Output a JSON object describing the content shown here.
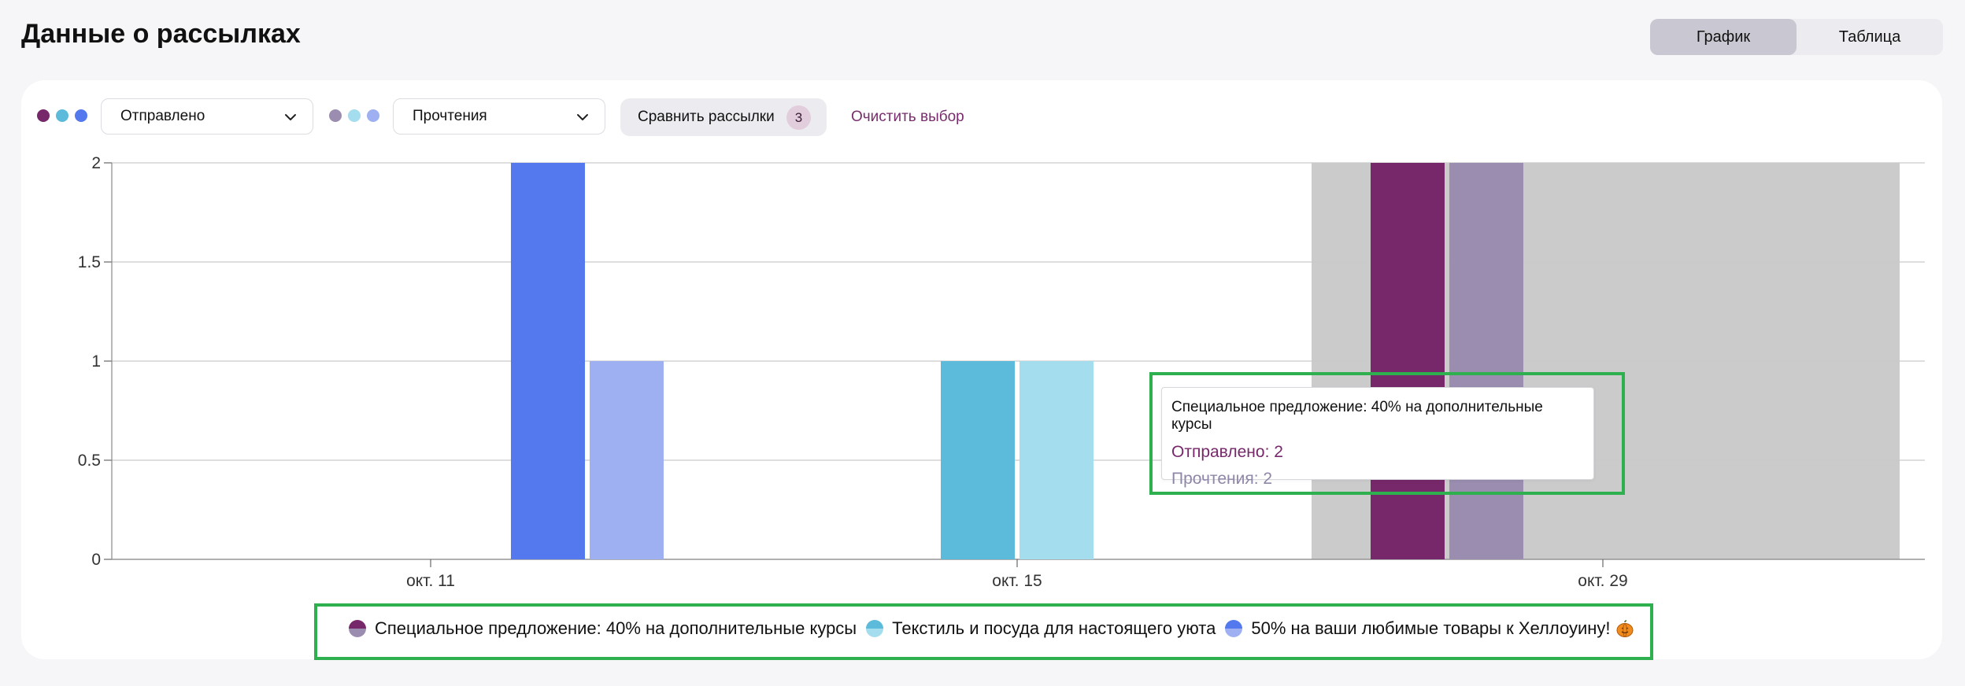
{
  "page": {
    "title": "Данные о рассылках",
    "view_tabs": [
      "График",
      "Таблица"
    ],
    "active_tab": "График"
  },
  "filters": {
    "metric_a": {
      "label": "Отправлено",
      "dot_colors": [
        "#77286a",
        "#5cbadb",
        "#5479ef"
      ]
    },
    "metric_b": {
      "label": "Прочтения",
      "dot_colors": [
        "#9a8db0",
        "#a3ddee",
        "#9eb0f2"
      ]
    },
    "compare_button": "Сравнить рассылки",
    "compare_count": "3",
    "clear_link": "Очистить выбор"
  },
  "tooltip": {
    "title": "Специальное предложение: 40% на дополнительные курсы",
    "sent_line": "Отправлено: 2",
    "read_line": "Прочтения: 2"
  },
  "legend": {
    "items": [
      {
        "label": "Специальное предложение: 40% на дополнительные курсы",
        "top_color": "#77286a",
        "bottom_color": "#9a8db0"
      },
      {
        "label": "Текстиль и посуда для настоящего уюта",
        "top_color": "#5cbadb",
        "bottom_color": "#a3ddee"
      },
      {
        "label": "50% на ваши любимые товары к Хеллоуину!",
        "top_color": "#5479ef",
        "bottom_color": "#9eb0f2",
        "emoji": "pumpkin-icon"
      }
    ]
  },
  "chart_data": {
    "type": "bar",
    "categories": [
      "окт. 11",
      "окт. 15",
      "окт. 29"
    ],
    "y_ticks": [
      "0",
      "0.5",
      "1",
      "1.5",
      "2"
    ],
    "ylim": [
      0,
      2
    ],
    "grid": true,
    "highlighted_category": "окт. 29",
    "highlight_color": "#cbcbcb",
    "series": [
      {
        "name": "Специальное предложение: 40% на дополнительные курсы — Отправлено",
        "color": "#77286a",
        "values": [
          0,
          0,
          2
        ]
      },
      {
        "name": "Специальное предложение: 40% на дополнительные курсы — Прочтения",
        "color": "#9a8db0",
        "values": [
          0,
          0,
          2
        ]
      },
      {
        "name": "Текстиль и посуда для настоящего уюта — Отправлено",
        "color": "#5cbadb",
        "values": [
          0,
          1,
          0
        ]
      },
      {
        "name": "Текстиль и посуда для настоящего уюта — Прочтения",
        "color": "#a3ddee",
        "values": [
          0,
          1,
          0
        ]
      },
      {
        "name": "50% на ваши любимые товары к Хеллоуину! — Отправлено",
        "color": "#5479ef",
        "values": [
          2,
          0,
          0
        ]
      },
      {
        "name": "50% на ваши любимые товары к Хеллоуину! — Прочтения",
        "color": "#9eb0f2",
        "values": [
          1,
          0,
          0
        ]
      }
    ]
  }
}
